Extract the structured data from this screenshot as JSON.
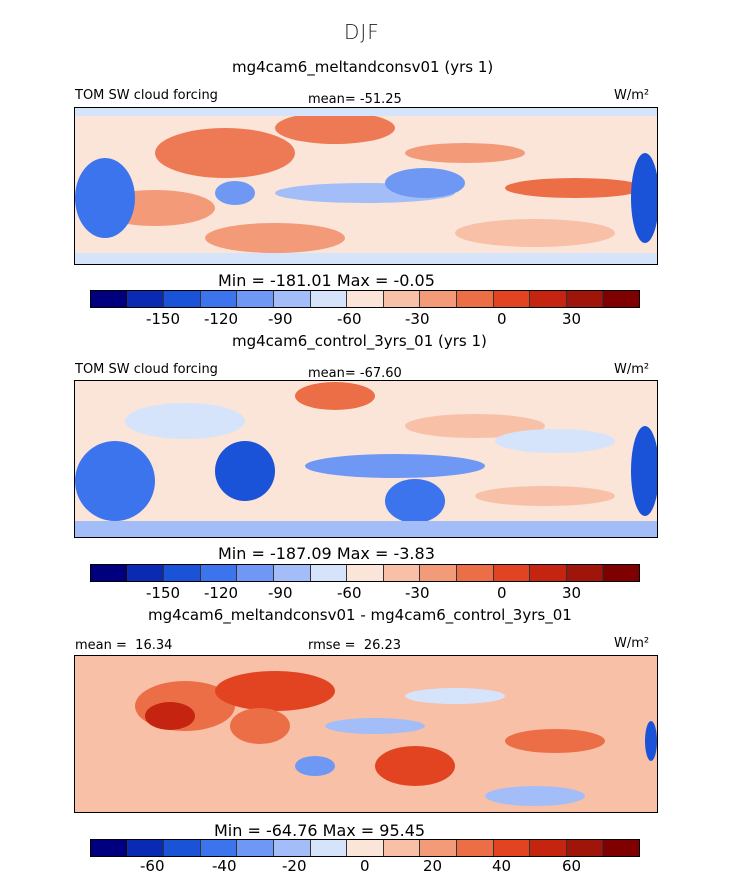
{
  "season": "DJF",
  "colors": [
    "#00007f",
    "#0a2ab4",
    "#1a52d8",
    "#3c74ee",
    "#6f98f5",
    "#a3bdf8",
    "#d6e4fb",
    "#fbe4d8",
    "#f8c0a7",
    "#f39a78",
    "#ec6e47",
    "#e24422",
    "#c42410",
    "#a0150a",
    "#7f0000"
  ],
  "panels": [
    {
      "case": "mg4cam6_meltandconsv01 (yrs 1)",
      "variable": "TOM SW cloud forcing",
      "mean_label": "mean=",
      "mean": "-51.25",
      "units": "W/m²",
      "stats": "Min = -181.01 Max =  -0.05",
      "ticks": [
        "-150",
        "-120",
        "-90",
        "-60",
        "-30",
        "0",
        "30"
      ]
    },
    {
      "case": "mg4cam6_control_3yrs_01 (yrs 1)",
      "variable": "TOM SW cloud forcing",
      "mean_label": "mean=",
      "mean": "-67.60",
      "units": "W/m²",
      "stats": "Min = -187.09 Max =  -3.83",
      "ticks": [
        "-150",
        "-120",
        "-90",
        "-60",
        "-30",
        "0",
        "30"
      ]
    },
    {
      "case": "mg4cam6_meltandconsv01 - mg4cam6_control_3yrs_01",
      "mean_label": "mean =",
      "mean": "16.34",
      "rmse_label": "rmse =",
      "rmse": "26.23",
      "units": "W/m²",
      "stats": "Min = -64.76 Max =  95.45",
      "ticks": [
        "-60",
        "-40",
        "-20",
        "0",
        "20",
        "40",
        "60"
      ]
    }
  ],
  "chart_data": [
    {
      "type": "heatmap",
      "title": "mg4cam6_meltandconsv01 (yrs 1)",
      "variable": "TOM SW cloud forcing",
      "units": "W/m²",
      "mean": -51.25,
      "min": -181.01,
      "max": -0.05,
      "colorbar_levels": [
        -180,
        -165,
        -150,
        -135,
        -120,
        -105,
        -90,
        -75,
        -60,
        -45,
        -30,
        -15,
        0,
        15,
        30,
        45
      ],
      "colorbar_ticks": [
        -150,
        -120,
        -90,
        -60,
        -30,
        0,
        30
      ]
    },
    {
      "type": "heatmap",
      "title": "mg4cam6_control_3yrs_01 (yrs 1)",
      "variable": "TOM SW cloud forcing",
      "units": "W/m²",
      "mean": -67.6,
      "min": -187.09,
      "max": -3.83,
      "colorbar_levels": [
        -180,
        -165,
        -150,
        -135,
        -120,
        -105,
        -90,
        -75,
        -60,
        -45,
        -30,
        -15,
        0,
        15,
        30,
        45
      ],
      "colorbar_ticks": [
        -150,
        -120,
        -90,
        -60,
        -30,
        0,
        30
      ]
    },
    {
      "type": "heatmap",
      "title": "mg4cam6_meltandconsv01 - mg4cam6_control_3yrs_01",
      "units": "W/m²",
      "mean": 16.34,
      "rmse": 26.23,
      "min": -64.76,
      "max": 95.45,
      "colorbar_levels": [
        -70,
        -60,
        -50,
        -40,
        -30,
        -20,
        -10,
        0,
        10,
        20,
        30,
        40,
        50,
        60,
        70,
        80
      ],
      "colorbar_ticks": [
        -60,
        -40,
        -20,
        0,
        20,
        40,
        60
      ]
    }
  ]
}
